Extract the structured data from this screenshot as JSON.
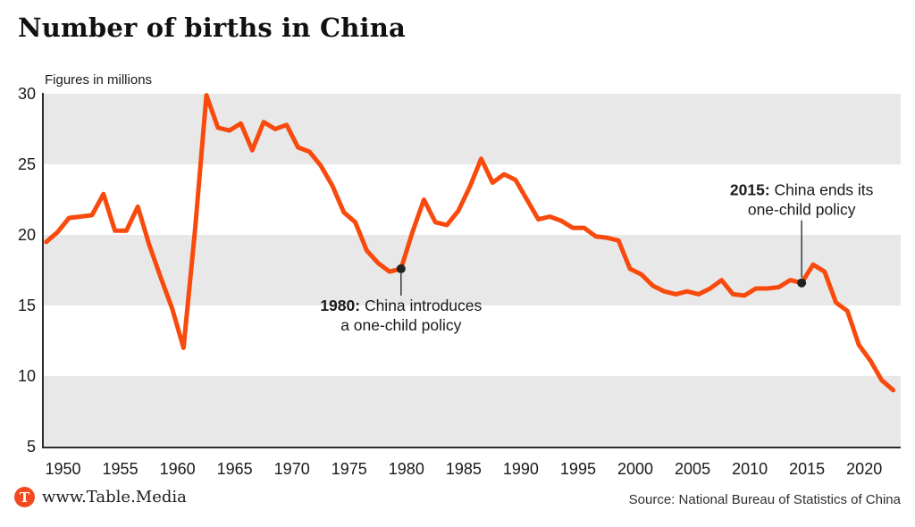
{
  "header": {
    "title": "Number of births in China",
    "subtitle": "Figures in millions"
  },
  "chart_data": {
    "type": "line",
    "title": "Number of births in China",
    "ylabel": "Figures in millions",
    "ylim": [
      5,
      30
    ],
    "y_ticks": [
      30,
      25,
      20,
      15,
      10,
      5
    ],
    "x_ticks": [
      1950,
      1955,
      1960,
      1965,
      1970,
      1975,
      1980,
      1985,
      1990,
      1995,
      2000,
      2005,
      2010,
      2015,
      2020
    ],
    "grid_bands": [
      [
        25,
        30
      ],
      [
        15,
        20
      ],
      [
        5,
        10
      ]
    ],
    "band_color": "#e8e8e8",
    "axis_color": "#2d2d2d",
    "line_color": "#f84a0c",
    "dot_color": "#222222",
    "x": [
      1949,
      1950,
      1951,
      1952,
      1953,
      1954,
      1955,
      1956,
      1957,
      1958,
      1959,
      1960,
      1961,
      1962,
      1963,
      1964,
      1965,
      1966,
      1967,
      1968,
      1969,
      1970,
      1971,
      1972,
      1973,
      1974,
      1975,
      1976,
      1977,
      1978,
      1979,
      1980,
      1981,
      1982,
      1983,
      1984,
      1985,
      1986,
      1987,
      1988,
      1989,
      1990,
      1991,
      1992,
      1993,
      1994,
      1995,
      1996,
      1997,
      1998,
      1999,
      2000,
      2001,
      2002,
      2003,
      2004,
      2005,
      2006,
      2007,
      2008,
      2009,
      2010,
      2011,
      2012,
      2013,
      2014,
      2015,
      2016,
      2017,
      2018,
      2019,
      2020,
      2021,
      2022,
      2023
    ],
    "series": [
      {
        "name": "Births in millions",
        "values": [
          19.5,
          20.2,
          21.2,
          21.3,
          21.4,
          22.9,
          20.3,
          20.3,
          22.0,
          19.3,
          17.0,
          14.8,
          12.0,
          20.3,
          29.9,
          27.6,
          27.4,
          27.9,
          26.0,
          28.0,
          27.5,
          27.8,
          26.2,
          25.9,
          24.9,
          23.5,
          21.6,
          20.9,
          18.9,
          18.0,
          17.4,
          17.6,
          20.2,
          22.5,
          20.9,
          20.7,
          21.7,
          23.4,
          25.4,
          23.7,
          24.3,
          23.9,
          22.5,
          21.1,
          21.3,
          21.0,
          20.5,
          20.5,
          19.9,
          19.8,
          19.6,
          17.6,
          17.2,
          16.4,
          16.0,
          15.8,
          16.0,
          15.8,
          16.2,
          16.8,
          15.8,
          15.7,
          16.2,
          16.2,
          16.3,
          16.8,
          16.6,
          17.9,
          17.4,
          15.2,
          14.6,
          12.2,
          11.1,
          9.7,
          9.0
        ]
      }
    ],
    "annotations": [
      {
        "year": 1980,
        "value": 17.6,
        "bold": "1980:",
        "line1": " China introduces",
        "line2": "a one-child policy",
        "side": "below"
      },
      {
        "year": 2015,
        "value": 16.6,
        "bold": "2015:",
        "line1": " China ends its",
        "line2": "one-child policy",
        "side": "above"
      }
    ]
  },
  "footer": {
    "logo_letter": "T",
    "logo_color": "#f24b20",
    "brand": "www.Table.Media",
    "source": "Source: National Bureau of Statistics of China"
  }
}
